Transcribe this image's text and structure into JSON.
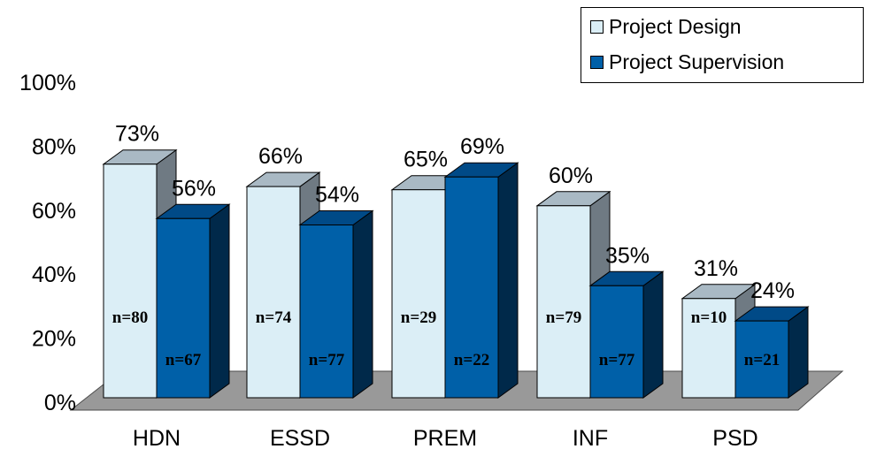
{
  "chart_data": {
    "type": "bar",
    "categories": [
      "HDN",
      "ESSD",
      "PREM",
      "INF",
      "PSD"
    ],
    "series": [
      {
        "name": "Project Design",
        "values": [
          73,
          66,
          65,
          60,
          31
        ],
        "value_labels": [
          "73%",
          "66%",
          "65%",
          "60%",
          "31%"
        ],
        "n_labels": [
          "n=80",
          "n=74",
          "n=29",
          "n=79",
          "n=10"
        ],
        "color": "#dbeef6"
      },
      {
        "name": "Project Supervision",
        "values": [
          56,
          54,
          69,
          35,
          24
        ],
        "value_labels": [
          "56%",
          "54%",
          "69%",
          "35%",
          "24%"
        ],
        "n_labels": [
          "n=67",
          "n=77",
          "n=22",
          "n=77",
          "n=21"
        ],
        "color": "#0060a8"
      }
    ],
    "yticks": [
      "0%",
      "20%",
      "40%",
      "60%",
      "80%",
      "100%"
    ],
    "ylim": [
      0,
      100
    ],
    "legend_position": "top-right",
    "grid": false,
    "three_d": true
  }
}
